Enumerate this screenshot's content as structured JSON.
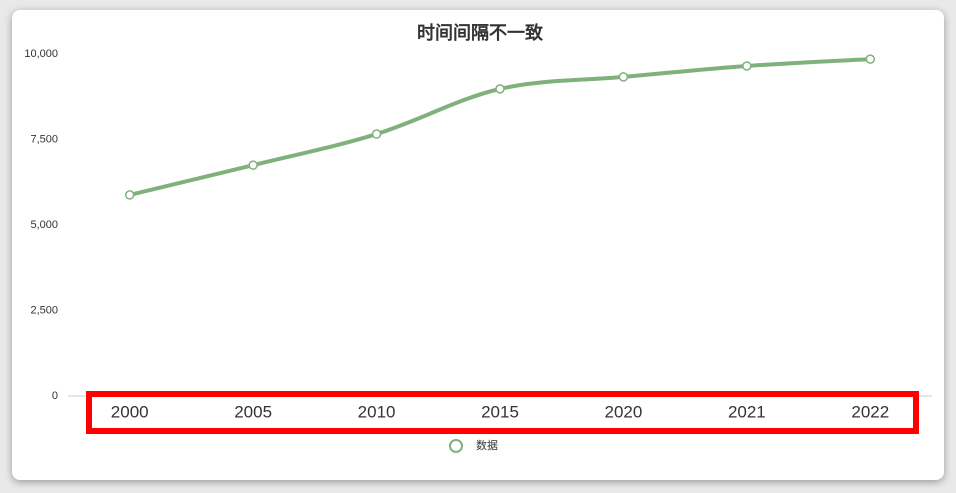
{
  "chart_data": {
    "type": "line",
    "title": "时间间隔不一致",
    "categories": [
      "2000",
      "2005",
      "2010",
      "2015",
      "2020",
      "2021",
      "2022"
    ],
    "series": [
      {
        "name": "数据",
        "color": "#80b17c",
        "values": [
          5880,
          6750,
          7660,
          8980,
          9330,
          9650,
          9850
        ]
      }
    ],
    "ylim": [
      0,
      10000
    ],
    "yticks": [
      0,
      {
        "value": 2500,
        "label": "2,500"
      },
      {
        "value": 5000,
        "label": "5,000"
      },
      {
        "value": 7500,
        "label": "7,500"
      },
      {
        "value": 10000,
        "label": "10,000"
      }
    ],
    "grid": false,
    "legend": "bottom"
  }
}
